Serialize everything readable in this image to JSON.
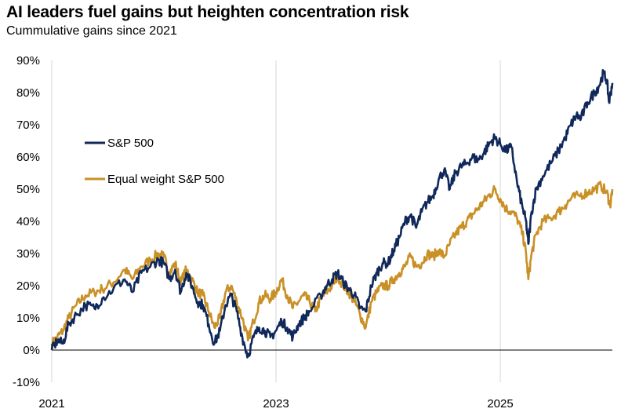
{
  "chart_data": {
    "type": "line",
    "title": "AI leaders fuel gains but heighten concentration risk",
    "subtitle": "Cummulative gains since 2021",
    "xlabel": "",
    "ylabel": "",
    "x_ticks": [
      "2021",
      "2023",
      "2025"
    ],
    "y_ticks": [
      "-10%",
      "0%",
      "10%",
      "20%",
      "30%",
      "40%",
      "50%",
      "60%",
      "70%",
      "80%",
      "90%"
    ],
    "ylim": [
      -10,
      90
    ],
    "xlim": [
      2021.0,
      2026.0
    ],
    "grid": "vertical lines at year ticks",
    "legend": "upper-left inside plot",
    "series": [
      {
        "name": "S&P 500",
        "color": "#10285a",
        "points": [
          [
            2021.0,
            0
          ],
          [
            2021.05,
            3
          ],
          [
            2021.1,
            2
          ],
          [
            2021.15,
            8
          ],
          [
            2021.22,
            11
          ],
          [
            2021.3,
            14
          ],
          [
            2021.38,
            13
          ],
          [
            2021.45,
            16
          ],
          [
            2021.55,
            19
          ],
          [
            2021.65,
            22
          ],
          [
            2021.72,
            18
          ],
          [
            2021.8,
            24
          ],
          [
            2021.88,
            26
          ],
          [
            2021.95,
            28
          ],
          [
            2022.0,
            27
          ],
          [
            2022.05,
            22
          ],
          [
            2022.1,
            25
          ],
          [
            2022.15,
            18
          ],
          [
            2022.2,
            24
          ],
          [
            2022.25,
            20
          ],
          [
            2022.3,
            15
          ],
          [
            2022.35,
            14
          ],
          [
            2022.4,
            8
          ],
          [
            2022.45,
            2
          ],
          [
            2022.5,
            6
          ],
          [
            2022.55,
            14
          ],
          [
            2022.6,
            17
          ],
          [
            2022.65,
            12
          ],
          [
            2022.7,
            4
          ],
          [
            2022.75,
            -2
          ],
          [
            2022.8,
            4
          ],
          [
            2022.85,
            7
          ],
          [
            2022.9,
            6
          ],
          [
            2022.95,
            4
          ],
          [
            2023.0,
            6
          ],
          [
            2023.05,
            9
          ],
          [
            2023.1,
            7
          ],
          [
            2023.15,
            4
          ],
          [
            2023.2,
            8
          ],
          [
            2023.25,
            10
          ],
          [
            2023.3,
            12
          ],
          [
            2023.4,
            17
          ],
          [
            2023.45,
            20
          ],
          [
            2023.5,
            22
          ],
          [
            2023.55,
            24
          ],
          [
            2023.6,
            21
          ],
          [
            2023.65,
            19
          ],
          [
            2023.7,
            17
          ],
          [
            2023.75,
            13
          ],
          [
            2023.8,
            12
          ],
          [
            2023.85,
            20
          ],
          [
            2023.9,
            24
          ],
          [
            2023.95,
            27
          ],
          [
            2024.0,
            27
          ],
          [
            2024.05,
            31
          ],
          [
            2024.1,
            35
          ],
          [
            2024.15,
            40
          ],
          [
            2024.2,
            42
          ],
          [
            2024.25,
            38
          ],
          [
            2024.3,
            43
          ],
          [
            2024.35,
            46
          ],
          [
            2024.4,
            48
          ],
          [
            2024.45,
            53
          ],
          [
            2024.5,
            56
          ],
          [
            2024.55,
            50
          ],
          [
            2024.6,
            55
          ],
          [
            2024.65,
            57
          ],
          [
            2024.7,
            58
          ],
          [
            2024.75,
            60
          ],
          [
            2024.8,
            59
          ],
          [
            2024.85,
            61
          ],
          [
            2024.9,
            64
          ],
          [
            2024.95,
            66
          ],
          [
            2025.0,
            64
          ],
          [
            2025.05,
            62
          ],
          [
            2025.1,
            63
          ],
          [
            2025.15,
            52
          ],
          [
            2025.2,
            44
          ],
          [
            2025.23,
            40
          ],
          [
            2025.25,
            33
          ],
          [
            2025.28,
            43
          ],
          [
            2025.32,
            50
          ],
          [
            2025.38,
            54
          ],
          [
            2025.45,
            58
          ],
          [
            2025.52,
            62
          ],
          [
            2025.58,
            66
          ],
          [
            2025.63,
            70
          ],
          [
            2025.68,
            73
          ],
          [
            2025.72,
            72
          ],
          [
            2025.78,
            77
          ],
          [
            2025.84,
            80
          ],
          [
            2025.88,
            82
          ],
          [
            2025.92,
            86
          ],
          [
            2025.95,
            84
          ],
          [
            2025.97,
            77
          ],
          [
            2026.0,
            83
          ]
        ]
      },
      {
        "name": "Equal weight S&P 500",
        "color": "#c99026",
        "points": [
          [
            2021.0,
            2
          ],
          [
            2021.05,
            4
          ],
          [
            2021.1,
            6
          ],
          [
            2021.15,
            10
          ],
          [
            2021.22,
            14
          ],
          [
            2021.3,
            17
          ],
          [
            2021.38,
            18
          ],
          [
            2021.45,
            19
          ],
          [
            2021.55,
            21
          ],
          [
            2021.65,
            25
          ],
          [
            2021.72,
            22
          ],
          [
            2021.8,
            26
          ],
          [
            2021.88,
            28
          ],
          [
            2021.95,
            30
          ],
          [
            2022.0,
            29
          ],
          [
            2022.05,
            24
          ],
          [
            2022.1,
            27
          ],
          [
            2022.15,
            21
          ],
          [
            2022.2,
            25
          ],
          [
            2022.25,
            22
          ],
          [
            2022.3,
            18
          ],
          [
            2022.35,
            17
          ],
          [
            2022.4,
            12
          ],
          [
            2022.45,
            7
          ],
          [
            2022.5,
            10
          ],
          [
            2022.55,
            18
          ],
          [
            2022.6,
            20
          ],
          [
            2022.65,
            15
          ],
          [
            2022.7,
            10
          ],
          [
            2022.75,
            3
          ],
          [
            2022.8,
            9
          ],
          [
            2022.85,
            15
          ],
          [
            2022.9,
            17
          ],
          [
            2022.95,
            16
          ],
          [
            2023.0,
            18
          ],
          [
            2023.05,
            22
          ],
          [
            2023.1,
            17
          ],
          [
            2023.15,
            13
          ],
          [
            2023.2,
            15
          ],
          [
            2023.25,
            17
          ],
          [
            2023.3,
            15
          ],
          [
            2023.35,
            12
          ],
          [
            2023.4,
            16
          ],
          [
            2023.45,
            18
          ],
          [
            2023.5,
            20
          ],
          [
            2023.55,
            23
          ],
          [
            2023.6,
            20
          ],
          [
            2023.65,
            18
          ],
          [
            2023.7,
            15
          ],
          [
            2023.75,
            11
          ],
          [
            2023.8,
            7
          ],
          [
            2023.85,
            15
          ],
          [
            2023.9,
            18
          ],
          [
            2023.95,
            20
          ],
          [
            2024.0,
            20
          ],
          [
            2024.05,
            22
          ],
          [
            2024.1,
            24
          ],
          [
            2024.15,
            26
          ],
          [
            2024.2,
            29
          ],
          [
            2024.25,
            26
          ],
          [
            2024.3,
            27
          ],
          [
            2024.35,
            30
          ],
          [
            2024.4,
            29
          ],
          [
            2024.45,
            31
          ],
          [
            2024.5,
            29
          ],
          [
            2024.55,
            33
          ],
          [
            2024.6,
            36
          ],
          [
            2024.65,
            38
          ],
          [
            2024.7,
            40
          ],
          [
            2024.75,
            42
          ],
          [
            2024.8,
            44
          ],
          [
            2024.85,
            46
          ],
          [
            2024.9,
            48
          ],
          [
            2024.95,
            50
          ],
          [
            2025.0,
            47
          ],
          [
            2025.05,
            44
          ],
          [
            2025.1,
            43
          ],
          [
            2025.15,
            41
          ],
          [
            2025.2,
            36
          ],
          [
            2025.23,
            30
          ],
          [
            2025.25,
            22
          ],
          [
            2025.28,
            30
          ],
          [
            2025.32,
            36
          ],
          [
            2025.38,
            40
          ],
          [
            2025.45,
            41
          ],
          [
            2025.52,
            43
          ],
          [
            2025.58,
            45
          ],
          [
            2025.63,
            47
          ],
          [
            2025.7,
            48
          ],
          [
            2025.78,
            49
          ],
          [
            2025.84,
            50
          ],
          [
            2025.9,
            51
          ],
          [
            2025.95,
            49
          ],
          [
            2025.98,
            45
          ],
          [
            2026.0,
            50
          ]
        ]
      }
    ]
  }
}
